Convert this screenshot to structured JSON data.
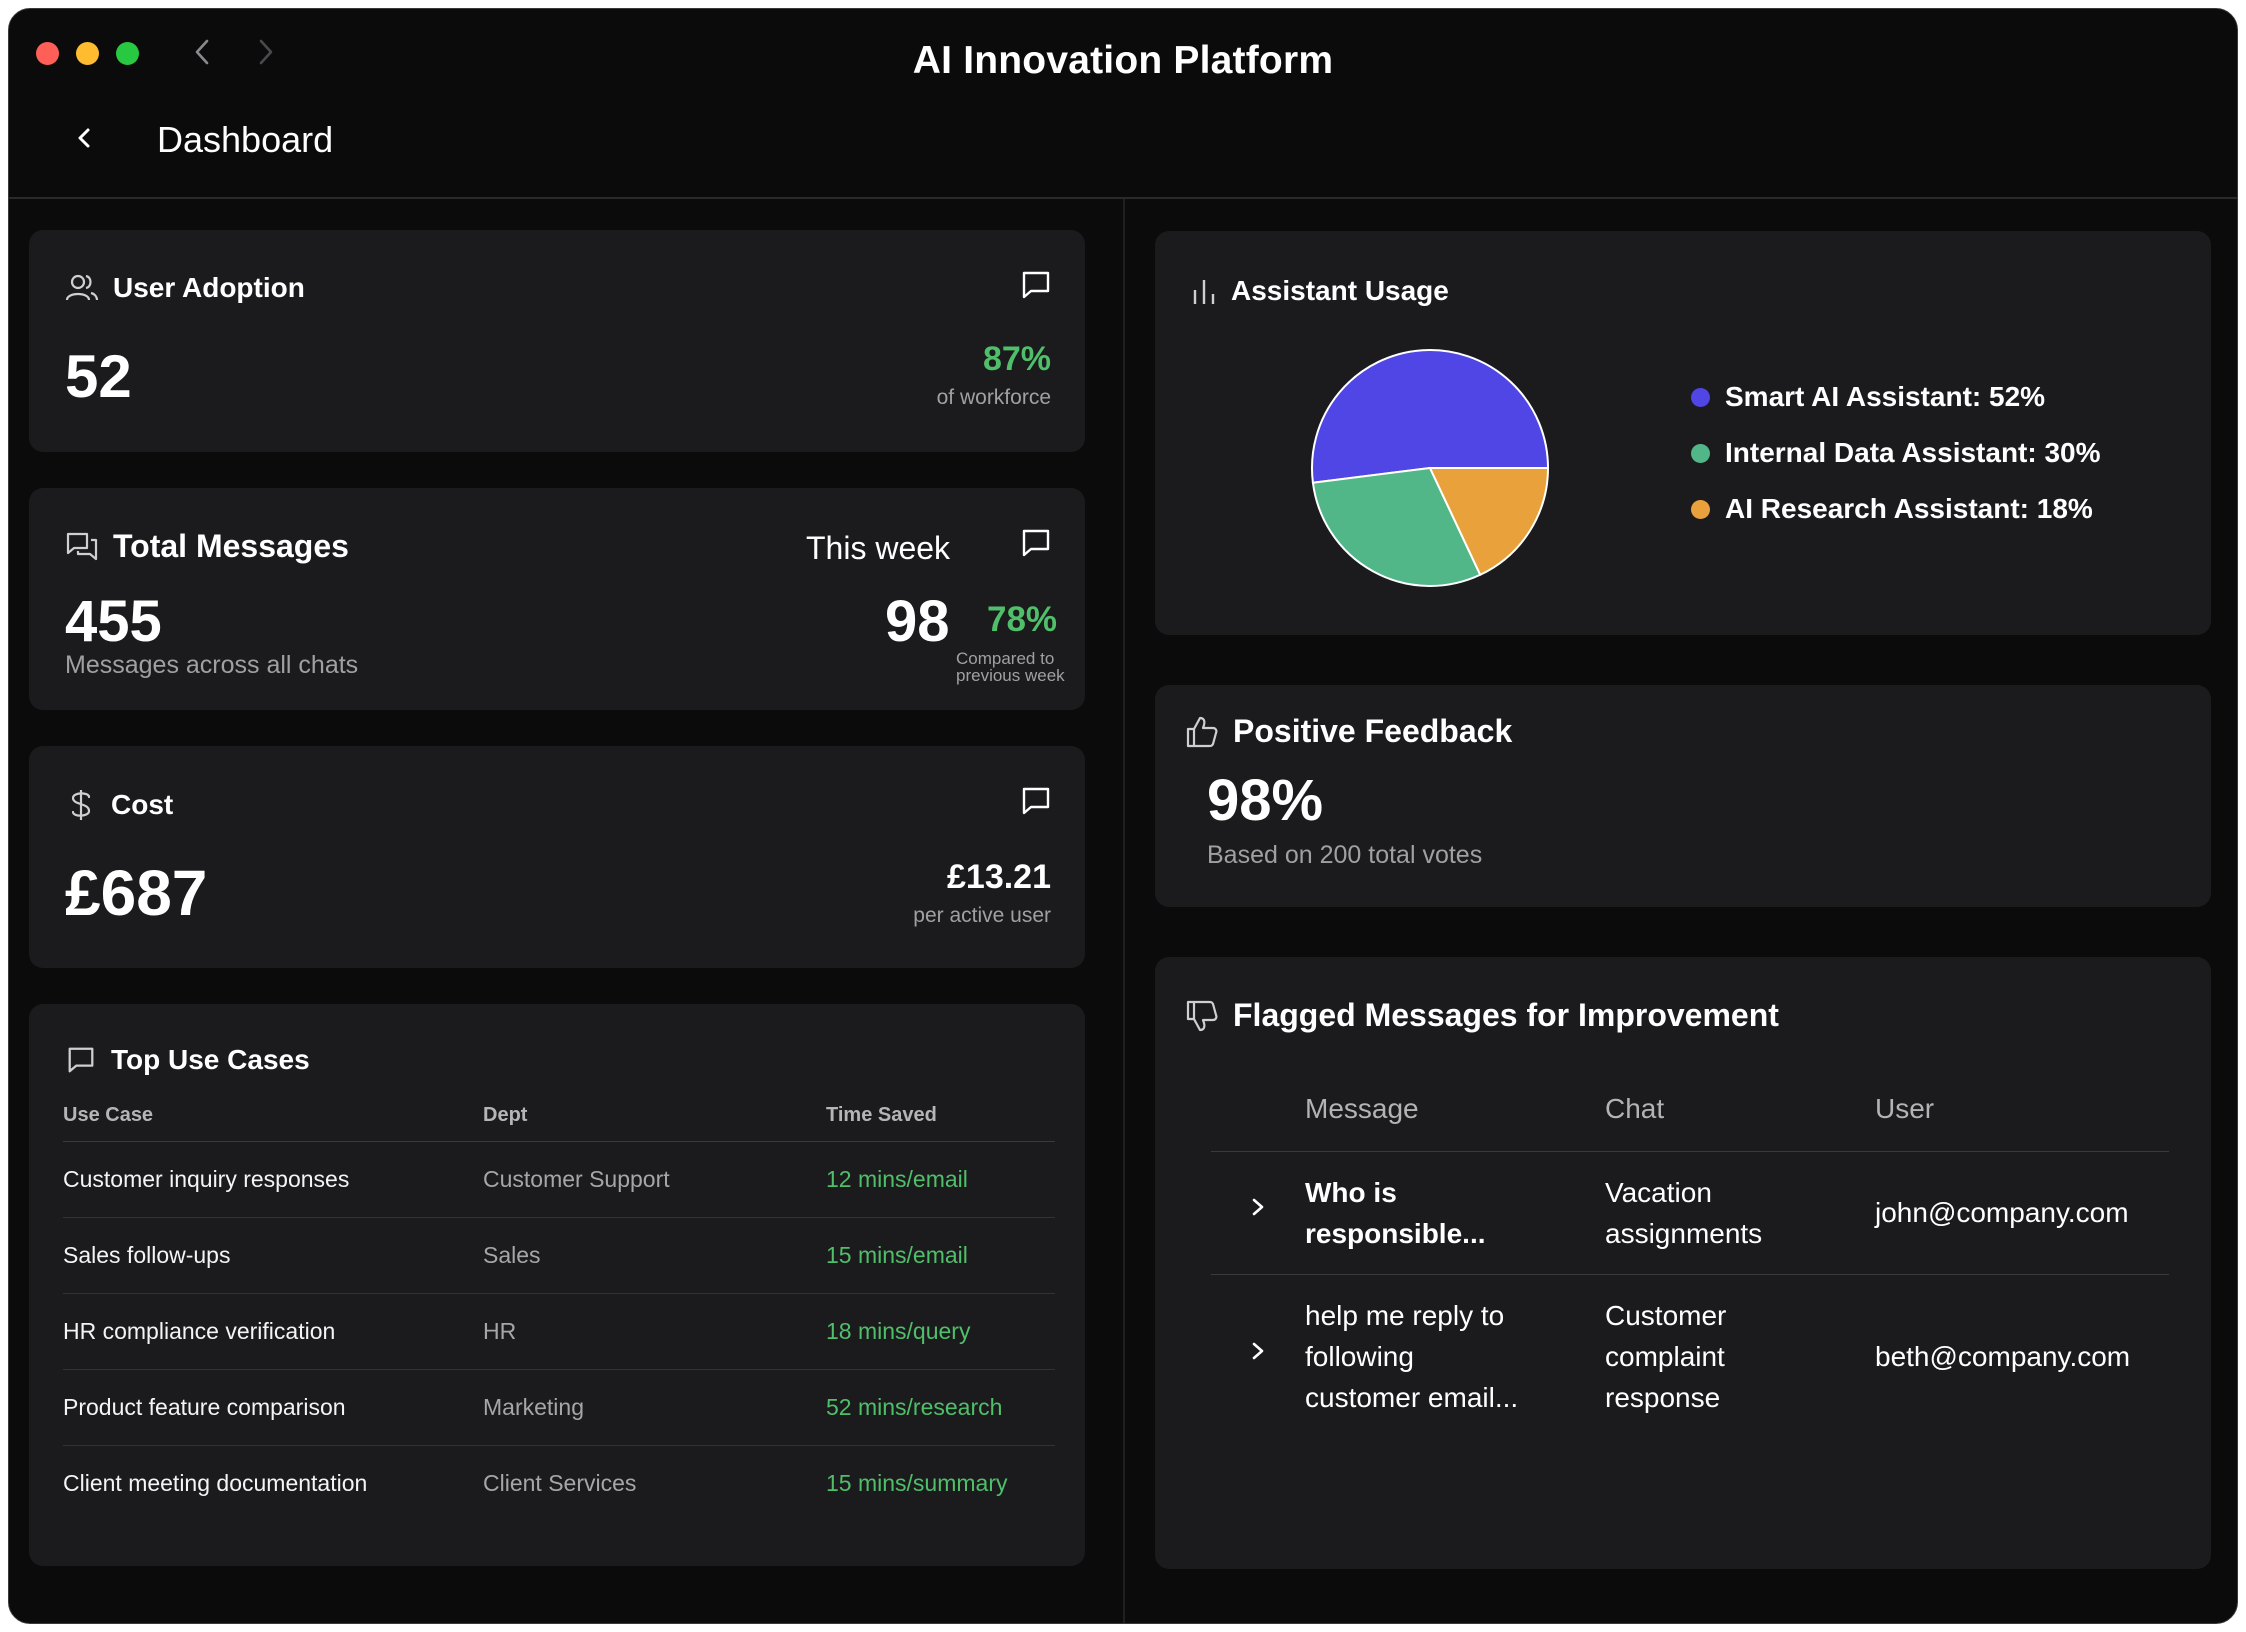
{
  "window": {
    "title": "AI Innovation Platform"
  },
  "header": {
    "title": "Dashboard"
  },
  "user_adoption": {
    "title": "User Adoption",
    "value": "52",
    "percent": "87%",
    "percent_label": "of workforce"
  },
  "total_messages": {
    "title": "Total Messages",
    "value": "455",
    "subtitle": "Messages across all chats",
    "week_label": "This week",
    "week_value": "98",
    "week_percent": "78%",
    "week_compare_line1": "Compared to",
    "week_compare_line2": "previous week"
  },
  "cost": {
    "title": "Cost",
    "value": "£687",
    "per_user_value": "£13.21",
    "per_user_label": "per active user"
  },
  "top_use_cases": {
    "title": "Top Use Cases",
    "columns": [
      "Use Case",
      "Dept",
      "Time Saved"
    ],
    "rows": [
      [
        "Customer inquiry responses",
        "Customer Support",
        "12 mins/email"
      ],
      [
        "Sales follow-ups",
        "Sales",
        "15 mins/email"
      ],
      [
        "HR compliance verification",
        "HR",
        "18 mins/query"
      ],
      [
        "Product feature comparison",
        "Marketing",
        "52 mins/research"
      ],
      [
        "Client meeting documentation",
        "Client Services",
        "15 mins/summary"
      ]
    ]
  },
  "assistant_usage": {
    "title": "Assistant Usage",
    "colors": [
      "#4f46e5",
      "#52b788",
      "#e9a23b"
    ],
    "legend": [
      "Smart AI Assistant: 52%",
      "Internal Data Assistant: 30%",
      "AI Research Assistant: 18%"
    ]
  },
  "chart_data": {
    "type": "pie",
    "categories": [
      "Smart AI Assistant",
      "Internal Data Assistant",
      "AI Research Assistant"
    ],
    "values": [
      52,
      30,
      18
    ],
    "title": "Assistant Usage",
    "legend_position": "right"
  },
  "positive_feedback": {
    "title": "Positive Feedback",
    "value": "98%",
    "subtitle": "Based on 200 total votes"
  },
  "flagged": {
    "title": "Flagged Messages for Improvement",
    "columns": [
      "Message",
      "Chat",
      "User"
    ],
    "rows": [
      {
        "message_line1": "Who is",
        "message_line2": "responsible...",
        "message_line3": "",
        "chat_line1": "Vacation",
        "chat_line2": "assignments",
        "chat_line3": "",
        "user": "john@company.com"
      },
      {
        "message_line1": "help me reply to",
        "message_line2": "following",
        "message_line3": "customer email...",
        "chat_line1": "Customer",
        "chat_line2": "complaint",
        "chat_line3": "response",
        "user": "beth@company.com"
      }
    ]
  }
}
